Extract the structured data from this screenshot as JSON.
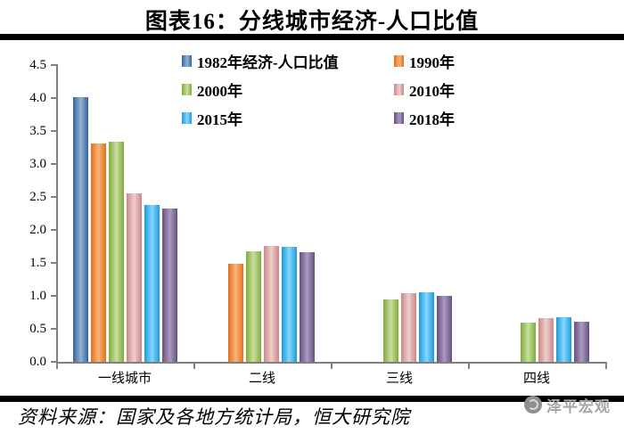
{
  "title": "图表16：分线城市经济-人口比值",
  "footer": {
    "source_note": "资料来源：国家及各地方统计局，恒大研究院",
    "watermark": "泽平宏观"
  },
  "colors": {
    "axis": "#808080",
    "rule": "#000000",
    "watermark_text": "#a6a6a6"
  },
  "chart_data": {
    "type": "bar",
    "title": "图表16：分线城市经济-人口比值",
    "categories": [
      "一线城市",
      "二线",
      "三线",
      "四线"
    ],
    "series": [
      {
        "name": "1982年经济-人口比值",
        "color": "#4F81BD",
        "edge": "#3A6497",
        "center": "#8FB4D9",
        "values": [
          4.02,
          null,
          null,
          null
        ]
      },
      {
        "name": "1990年",
        "color": "#F79646",
        "edge": "#E0701C",
        "center": "#FBB377",
        "values": [
          3.31,
          1.48,
          null,
          null
        ]
      },
      {
        "name": "2000年",
        "color": "#9BBB59",
        "edge": "#83A93C",
        "center": "#C8E09E",
        "values": [
          3.34,
          1.67,
          0.94,
          0.6
        ]
      },
      {
        "name": "2010年",
        "color": "#D99694",
        "edge": "#C98886",
        "center": "#EFCECD",
        "values": [
          2.55,
          1.76,
          1.04,
          0.66
        ]
      },
      {
        "name": "2015年",
        "color": "#3DB1E6",
        "edge": "#1E9BD7",
        "center": "#85D7FF",
        "values": [
          2.38,
          1.74,
          1.05,
          0.67
        ]
      },
      {
        "name": "2018年",
        "color": "#8064A2",
        "edge": "#64507E",
        "center": "#AB9BC2",
        "values": [
          2.32,
          1.66,
          1.0,
          0.61
        ]
      }
    ],
    "ylim": [
      0,
      4.5
    ],
    "ytick_step": 0.5,
    "ytick_labels": [
      "0.0",
      "0.5",
      "1.0",
      "1.5",
      "2.0",
      "2.5",
      "3.0",
      "3.5",
      "4.0",
      "4.5"
    ],
    "grid": false,
    "legend_position": "top-inside-two-columns"
  }
}
